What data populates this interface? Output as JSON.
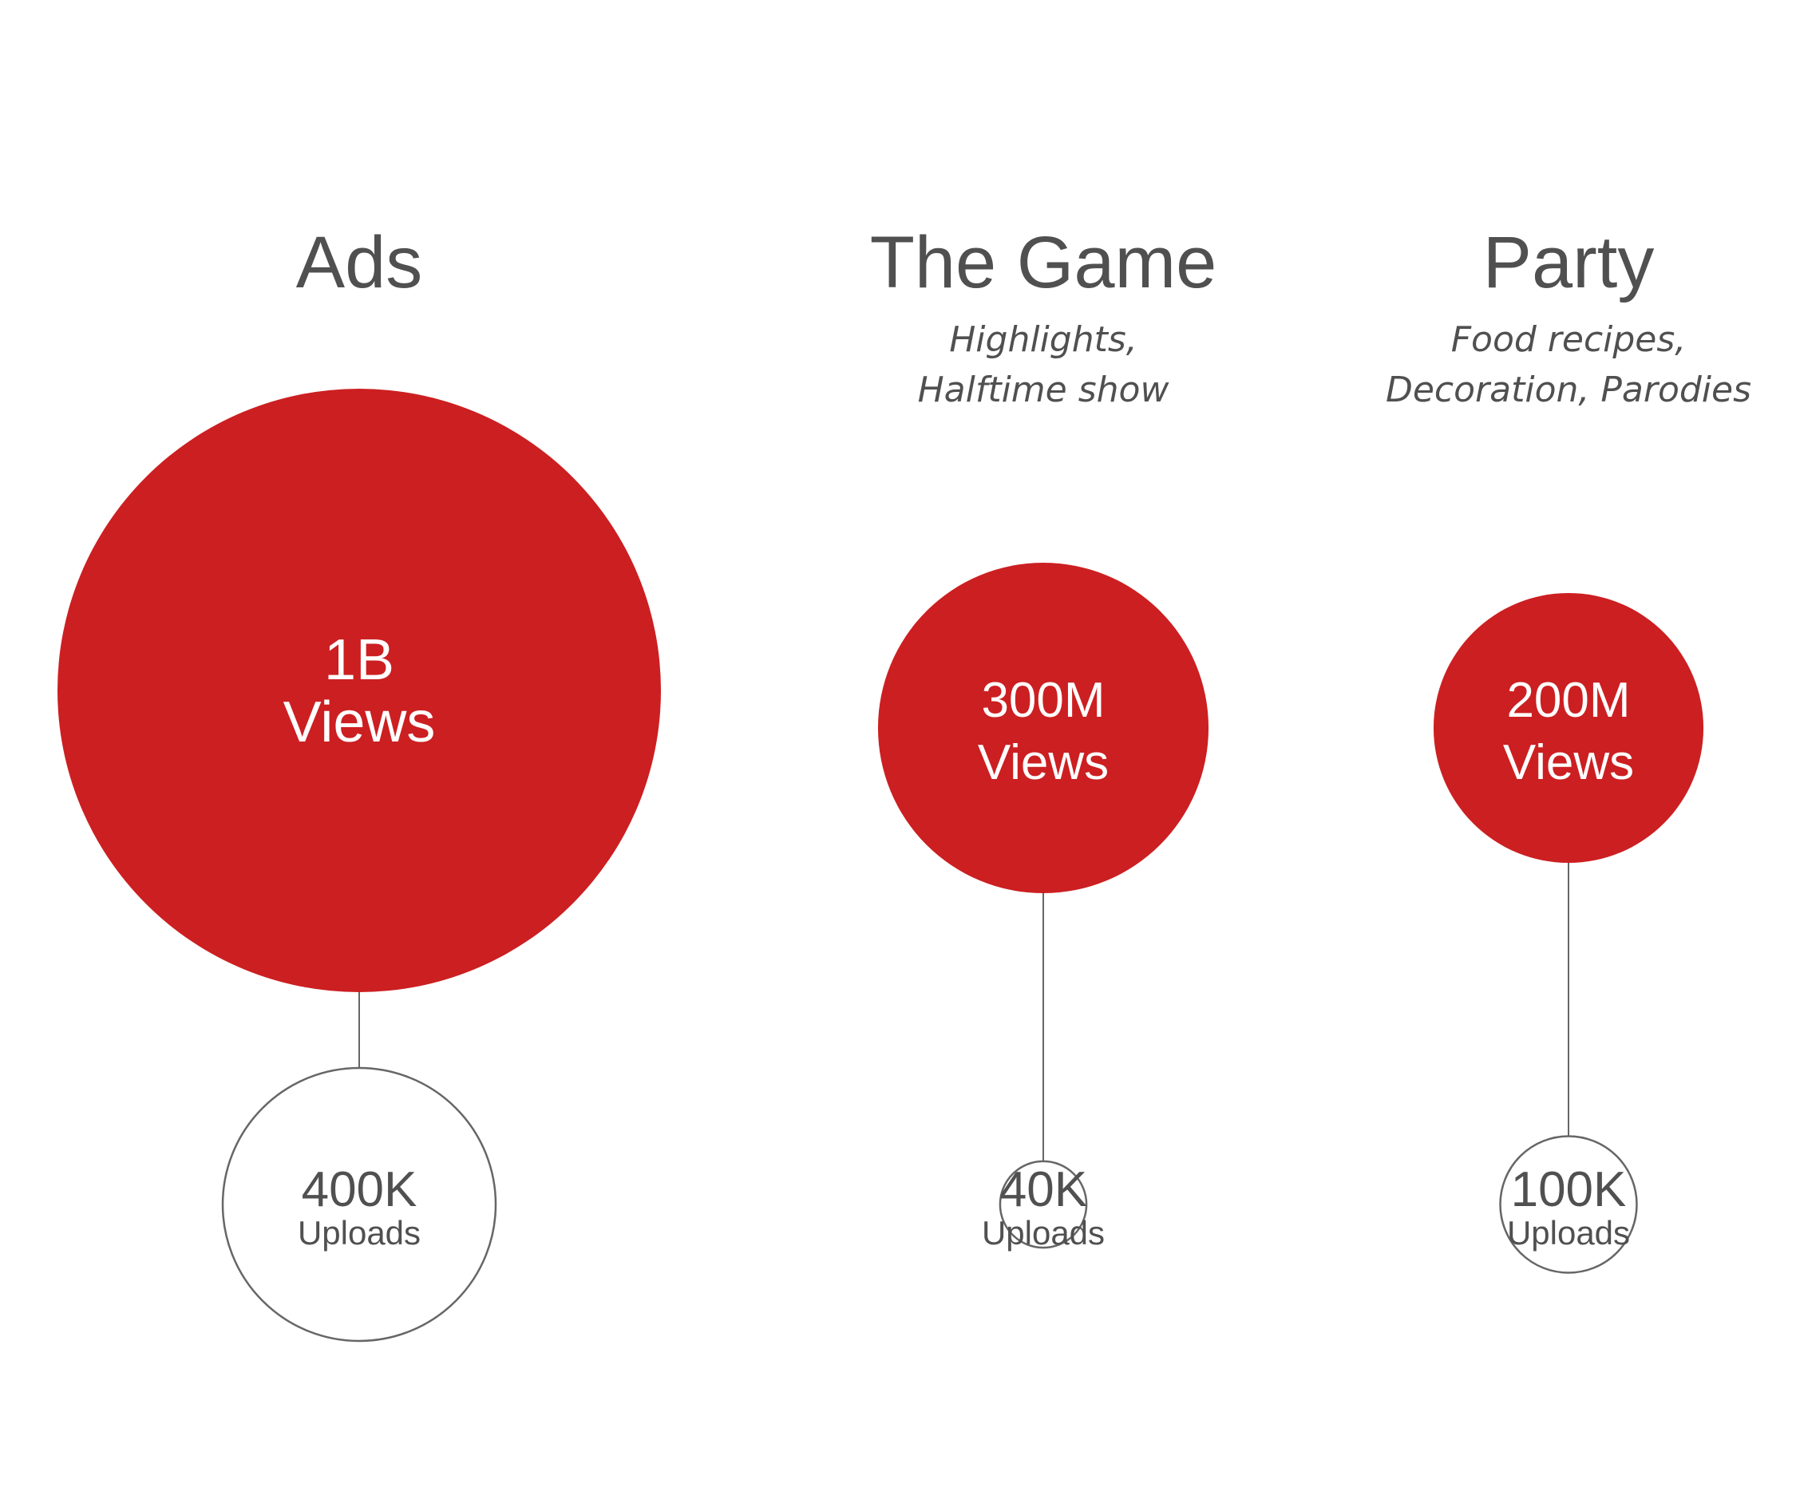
{
  "colors": {
    "views_fill": "#cc1f21",
    "uploads_stroke": "#666666",
    "text_dark": "#505050",
    "text_light": "#ffffff",
    "connector": "#666666"
  },
  "chart_data": {
    "type": "bubble",
    "categories": [
      {
        "title": "Ads",
        "subtitle": [],
        "views": 1000000000,
        "views_value": "1B",
        "views_label": "Views",
        "uploads": 400000,
        "uploads_value": "400K",
        "uploads_label": "Uploads"
      },
      {
        "title": "The Game",
        "subtitle": [
          "Highlights,",
          "Halftime show"
        ],
        "views": 300000000,
        "views_value": "300M",
        "views_label": "Views",
        "uploads": 40000,
        "uploads_value": "40K",
        "uploads_label": "Uploads"
      },
      {
        "title": "Party",
        "subtitle": [
          "Food recipes,",
          "Decoration, Parodies"
        ],
        "views": 200000000,
        "views_value": "200M",
        "views_label": "Views",
        "uploads": 100000,
        "uploads_value": "100K",
        "uploads_label": "Uploads"
      }
    ]
  }
}
